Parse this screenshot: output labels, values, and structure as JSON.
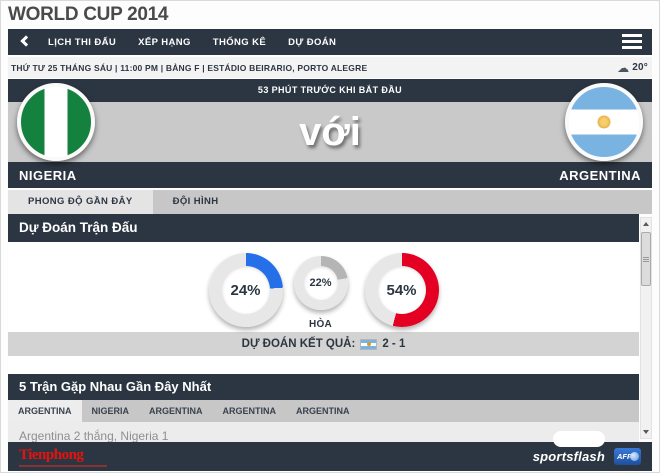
{
  "page": {
    "title": "WORLD CUP 2014"
  },
  "colors": {
    "navy": "#2c3642",
    "blue": "#2570e8",
    "red": "#e30022",
    "gray": "#b5b5b5"
  },
  "navbar": {
    "items": [
      {
        "label": "LỊCH THI ĐẤU"
      },
      {
        "label": "XẾP HẠNG"
      },
      {
        "label": "THỐNG KÊ"
      },
      {
        "label": "DỰ ĐOÁN"
      }
    ]
  },
  "match_info": {
    "details": "THỨ TƯ 25 THÁNG SÁU | 11:00 PM | BẢNG F | ESTÁDIO BEIRARIO, PORTO ALEGRE",
    "weather_glyph": "☁",
    "temperature": "20°"
  },
  "match_header": {
    "countdown": "53 PHÚT TRƯỚC KHI BẮT ĐẦU",
    "versus": "với",
    "home_team": "NIGERIA",
    "away_team": "ARGENTINA"
  },
  "tabs": [
    {
      "label": "PHONG ĐỘ GẦN ĐÂY",
      "active": true
    },
    {
      "label": "ĐỘI HÌNH",
      "active": false
    }
  ],
  "prediction": {
    "section_title": "Dự Đoán Trận Đấu",
    "donuts": [
      {
        "team": "NIGERIA",
        "percent": 24,
        "label_text": "24%",
        "color": "#2570e8",
        "track": "#e7e7e7"
      },
      {
        "team": "HÒA",
        "percent": 22,
        "label_text": "22%",
        "color": "#b5b5b5",
        "track": "#e7e7e7",
        "caption": "HÒA"
      },
      {
        "team": "ARGENTINA",
        "percent": 54,
        "label_text": "54%",
        "color": "#e30022",
        "track": "#e7e7e7"
      }
    ],
    "result_label": "DỰ ĐOÁN KẾT QUẢ:",
    "result_score": "2 - 1"
  },
  "head_to_head": {
    "section_title": "5 Trận Gặp Nhau Gần Đây Nhất",
    "tabs": [
      {
        "label": "ARGENTINA",
        "active": true
      },
      {
        "label": "NIGERIA",
        "active": false
      },
      {
        "label": "ARGENTINA",
        "active": false
      },
      {
        "label": "ARGENTINA",
        "active": false
      },
      {
        "label": "ARGENTINA",
        "active": false
      }
    ],
    "summary": "Argentina 2 thắng, Nigeria 1"
  },
  "footer": {
    "left_logo": "Tienphong",
    "right_logo": "sportsflash",
    "afp_label": "AFP"
  },
  "chart_data": {
    "type": "pie",
    "title": "Dự Đoán Trận Đấu",
    "series": [
      {
        "name": "NIGERIA",
        "value": 24,
        "color": "#2570e8"
      },
      {
        "name": "HÒA",
        "value": 22,
        "color": "#b5b5b5"
      },
      {
        "name": "ARGENTINA",
        "value": 54,
        "color": "#e30022"
      }
    ],
    "annotations": [
      "DỰ ĐOÁN KẾT QUẢ: 2 - 1"
    ],
    "legend_position": "none",
    "note_style": "three separate donut gauges, values start at 12 o'clock clockwise"
  }
}
